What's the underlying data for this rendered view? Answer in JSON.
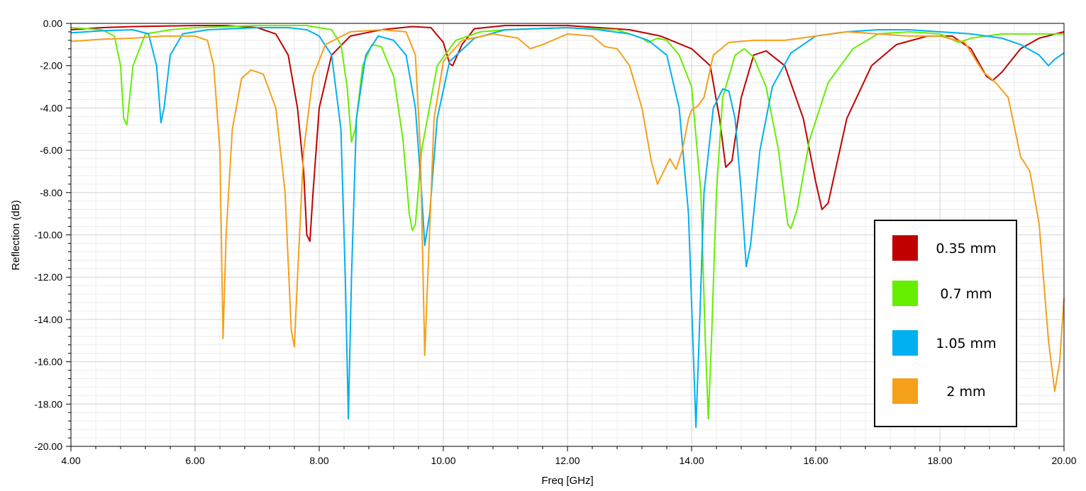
{
  "chart_data": {
    "type": "line",
    "title": "",
    "xlabel": "Freq [GHz]",
    "ylabel": "Reflection (dB)",
    "xlim": [
      4,
      20
    ],
    "ylim": [
      -20,
      0
    ],
    "x_ticks": [
      "4.00",
      "6.00",
      "8.00",
      "10.00",
      "12.00",
      "14.00",
      "16.00",
      "18.00",
      "20.00"
    ],
    "y_ticks": [
      "0.00",
      "-2.00",
      "-4.00",
      "-6.00",
      "-8.00",
      "-10.00",
      "-12.00",
      "-14.00",
      "-16.00",
      "-18.00",
      "-20.00"
    ],
    "grid": true,
    "legend_position": "bottom-right",
    "series": [
      {
        "name": "0.35 mm",
        "color": "#c00000",
        "points": [
          [
            4,
            -0.3
          ],
          [
            4.5,
            -0.2
          ],
          [
            5,
            -0.15
          ],
          [
            6,
            -0.1
          ],
          [
            6.5,
            -0.1
          ],
          [
            7,
            -0.2
          ],
          [
            7.3,
            -0.5
          ],
          [
            7.5,
            -1.5
          ],
          [
            7.65,
            -4.0
          ],
          [
            7.75,
            -7.0
          ],
          [
            7.8,
            -10.0
          ],
          [
            7.85,
            -10.3
          ],
          [
            7.9,
            -8.0
          ],
          [
            8.0,
            -4.0
          ],
          [
            8.2,
            -1.5
          ],
          [
            8.5,
            -0.6
          ],
          [
            9.0,
            -0.3
          ],
          [
            9.5,
            -0.15
          ],
          [
            9.8,
            -0.2
          ],
          [
            10.0,
            -0.9
          ],
          [
            10.1,
            -1.9
          ],
          [
            10.15,
            -2.0
          ],
          [
            10.3,
            -1.0
          ],
          [
            10.5,
            -0.25
          ],
          [
            11,
            -0.1
          ],
          [
            12,
            -0.1
          ],
          [
            13,
            -0.3
          ],
          [
            13.5,
            -0.6
          ],
          [
            14.0,
            -1.2
          ],
          [
            14.3,
            -2.0
          ],
          [
            14.45,
            -4.5
          ],
          [
            14.55,
            -6.8
          ],
          [
            14.65,
            -6.5
          ],
          [
            14.8,
            -3.5
          ],
          [
            15.0,
            -1.5
          ],
          [
            15.2,
            -1.3
          ],
          [
            15.5,
            -2.0
          ],
          [
            15.8,
            -4.5
          ],
          [
            16.0,
            -7.5
          ],
          [
            16.1,
            -8.8
          ],
          [
            16.2,
            -8.5
          ],
          [
            16.5,
            -4.5
          ],
          [
            16.9,
            -2.0
          ],
          [
            17.3,
            -1.0
          ],
          [
            17.8,
            -0.6
          ],
          [
            18.2,
            -0.6
          ],
          [
            18.5,
            -1.2
          ],
          [
            18.75,
            -2.5
          ],
          [
            18.85,
            -2.7
          ],
          [
            19.0,
            -2.3
          ],
          [
            19.3,
            -1.2
          ],
          [
            19.6,
            -0.7
          ],
          [
            20,
            -0.4
          ]
        ]
      },
      {
        "name": "0.7 mm",
        "color": "#66ee00",
        "points": [
          [
            4,
            -0.2
          ],
          [
            4.5,
            -0.3
          ],
          [
            4.7,
            -0.6
          ],
          [
            4.8,
            -2.0
          ],
          [
            4.85,
            -4.5
          ],
          [
            4.9,
            -4.8
          ],
          [
            5.0,
            -2.0
          ],
          [
            5.2,
            -0.5
          ],
          [
            5.6,
            -0.3
          ],
          [
            6,
            -0.2
          ],
          [
            7,
            -0.1
          ],
          [
            7.8,
            -0.1
          ],
          [
            8.2,
            -0.3
          ],
          [
            8.35,
            -1.0
          ],
          [
            8.45,
            -3.0
          ],
          [
            8.52,
            -5.6
          ],
          [
            8.58,
            -5.0
          ],
          [
            8.7,
            -2.0
          ],
          [
            8.85,
            -1.0
          ],
          [
            9.0,
            -1.1
          ],
          [
            9.2,
            -2.5
          ],
          [
            9.35,
            -5.5
          ],
          [
            9.45,
            -9.0
          ],
          [
            9.5,
            -9.8
          ],
          [
            9.55,
            -9.5
          ],
          [
            9.65,
            -6.0
          ],
          [
            9.9,
            -2.0
          ],
          [
            10.2,
            -0.8
          ],
          [
            10.6,
            -0.4
          ],
          [
            11,
            -0.3
          ],
          [
            12,
            -0.2
          ],
          [
            12.8,
            -0.3
          ],
          [
            13.2,
            -0.7
          ],
          [
            13.3,
            -0.9
          ],
          [
            13.45,
            -0.7
          ],
          [
            13.6,
            -0.8
          ],
          [
            13.8,
            -1.5
          ],
          [
            14.0,
            -3.0
          ],
          [
            14.15,
            -8.0
          ],
          [
            14.22,
            -15.0
          ],
          [
            14.27,
            -18.7
          ],
          [
            14.32,
            -15.0
          ],
          [
            14.4,
            -8.0
          ],
          [
            14.5,
            -3.5
          ],
          [
            14.7,
            -1.5
          ],
          [
            14.85,
            -1.2
          ],
          [
            15.0,
            -1.6
          ],
          [
            15.2,
            -3.0
          ],
          [
            15.4,
            -6.0
          ],
          [
            15.55,
            -9.5
          ],
          [
            15.6,
            -9.7
          ],
          [
            15.7,
            -8.8
          ],
          [
            15.9,
            -5.5
          ],
          [
            16.2,
            -2.8
          ],
          [
            16.6,
            -1.2
          ],
          [
            17.0,
            -0.5
          ],
          [
            17.5,
            -0.4
          ],
          [
            18.0,
            -0.5
          ],
          [
            18.3,
            -0.9
          ],
          [
            18.5,
            -0.7
          ],
          [
            19.0,
            -0.5
          ],
          [
            20,
            -0.5
          ]
        ]
      },
      {
        "name": "1.05 mm",
        "color": "#00b0f0",
        "points": [
          [
            4,
            -0.45
          ],
          [
            4.5,
            -0.35
          ],
          [
            5.0,
            -0.3
          ],
          [
            5.25,
            -0.5
          ],
          [
            5.38,
            -2.0
          ],
          [
            5.45,
            -4.7
          ],
          [
            5.5,
            -4.0
          ],
          [
            5.6,
            -1.5
          ],
          [
            5.8,
            -0.5
          ],
          [
            6.2,
            -0.3
          ],
          [
            7,
            -0.2
          ],
          [
            7.5,
            -0.2
          ],
          [
            7.8,
            -0.3
          ],
          [
            8.0,
            -0.6
          ],
          [
            8.2,
            -1.5
          ],
          [
            8.35,
            -5.0
          ],
          [
            8.42,
            -12.0
          ],
          [
            8.47,
            -18.7
          ],
          [
            8.52,
            -12.0
          ],
          [
            8.6,
            -4.5
          ],
          [
            8.75,
            -1.5
          ],
          [
            8.95,
            -0.6
          ],
          [
            9.2,
            -0.8
          ],
          [
            9.4,
            -1.5
          ],
          [
            9.55,
            -4.0
          ],
          [
            9.65,
            -8.0
          ],
          [
            9.7,
            -10.5
          ],
          [
            9.78,
            -9.0
          ],
          [
            9.9,
            -4.5
          ],
          [
            10.1,
            -1.8
          ],
          [
            10.5,
            -0.7
          ],
          [
            11,
            -0.3
          ],
          [
            12,
            -0.2
          ],
          [
            12.5,
            -0.3
          ],
          [
            13.0,
            -0.5
          ],
          [
            13.3,
            -0.8
          ],
          [
            13.6,
            -1.5
          ],
          [
            13.8,
            -4.0
          ],
          [
            13.95,
            -9.0
          ],
          [
            14.02,
            -15.0
          ],
          [
            14.07,
            -19.1
          ],
          [
            14.12,
            -15.0
          ],
          [
            14.2,
            -8.0
          ],
          [
            14.35,
            -4.0
          ],
          [
            14.5,
            -3.1
          ],
          [
            14.6,
            -3.2
          ],
          [
            14.7,
            -4.5
          ],
          [
            14.8,
            -8.0
          ],
          [
            14.88,
            -11.5
          ],
          [
            14.95,
            -10.5
          ],
          [
            15.1,
            -6.0
          ],
          [
            15.3,
            -3.0
          ],
          [
            15.6,
            -1.4
          ],
          [
            16.0,
            -0.6
          ],
          [
            16.5,
            -0.4
          ],
          [
            17.0,
            -0.3
          ],
          [
            17.5,
            -0.3
          ],
          [
            18.0,
            -0.4
          ],
          [
            18.5,
            -0.5
          ],
          [
            19.0,
            -0.7
          ],
          [
            19.3,
            -1.0
          ],
          [
            19.6,
            -1.5
          ],
          [
            19.75,
            -2.0
          ],
          [
            19.85,
            -1.7
          ],
          [
            20,
            -1.4
          ]
        ]
      },
      {
        "name": "2 mm",
        "color": "#f5a01a",
        "points": [
          [
            4,
            -0.85
          ],
          [
            4.5,
            -0.75
          ],
          [
            5,
            -0.7
          ],
          [
            5.5,
            -0.6
          ],
          [
            6.0,
            -0.6
          ],
          [
            6.2,
            -0.8
          ],
          [
            6.3,
            -2.0
          ],
          [
            6.4,
            -6.0
          ],
          [
            6.45,
            -14.9
          ],
          [
            6.5,
            -10.0
          ],
          [
            6.6,
            -5.0
          ],
          [
            6.75,
            -2.6
          ],
          [
            6.9,
            -2.2
          ],
          [
            7.1,
            -2.4
          ],
          [
            7.3,
            -4.0
          ],
          [
            7.45,
            -8.0
          ],
          [
            7.55,
            -14.5
          ],
          [
            7.6,
            -15.3
          ],
          [
            7.65,
            -12.0
          ],
          [
            7.75,
            -6.0
          ],
          [
            7.9,
            -2.5
          ],
          [
            8.1,
            -1.0
          ],
          [
            8.5,
            -0.4
          ],
          [
            9.0,
            -0.3
          ],
          [
            9.4,
            -0.4
          ],
          [
            9.55,
            -1.5
          ],
          [
            9.63,
            -6.0
          ],
          [
            9.7,
            -15.7
          ],
          [
            9.75,
            -12.0
          ],
          [
            9.85,
            -4.5
          ],
          [
            10.0,
            -1.8
          ],
          [
            10.3,
            -0.8
          ],
          [
            10.8,
            -0.5
          ],
          [
            11.2,
            -0.7
          ],
          [
            11.4,
            -1.2
          ],
          [
            11.6,
            -1.0
          ],
          [
            12.0,
            -0.5
          ],
          [
            12.4,
            -0.6
          ],
          [
            12.6,
            -1.1
          ],
          [
            12.8,
            -1.2
          ],
          [
            13.0,
            -2.0
          ],
          [
            13.2,
            -4.0
          ],
          [
            13.35,
            -6.5
          ],
          [
            13.45,
            -7.6
          ],
          [
            13.55,
            -7.0
          ],
          [
            13.65,
            -6.4
          ],
          [
            13.75,
            -6.9
          ],
          [
            13.85,
            -6.0
          ],
          [
            13.95,
            -4.5
          ],
          [
            14.0,
            -4.1
          ],
          [
            14.1,
            -3.9
          ],
          [
            14.2,
            -3.5
          ],
          [
            14.35,
            -1.5
          ],
          [
            14.6,
            -0.9
          ],
          [
            15.0,
            -0.8
          ],
          [
            15.5,
            -0.8
          ],
          [
            16.0,
            -0.6
          ],
          [
            16.5,
            -0.4
          ],
          [
            17.0,
            -0.5
          ],
          [
            17.5,
            -0.6
          ],
          [
            18.0,
            -0.6
          ],
          [
            18.4,
            -0.9
          ],
          [
            18.7,
            -2.3
          ],
          [
            18.9,
            -2.8
          ],
          [
            19.1,
            -3.5
          ],
          [
            19.3,
            -6.3
          ],
          [
            19.45,
            -7.0
          ],
          [
            19.6,
            -9.5
          ],
          [
            19.75,
            -15.0
          ],
          [
            19.85,
            -17.4
          ],
          [
            19.93,
            -16.0
          ],
          [
            20,
            -13.0
          ]
        ]
      }
    ]
  }
}
